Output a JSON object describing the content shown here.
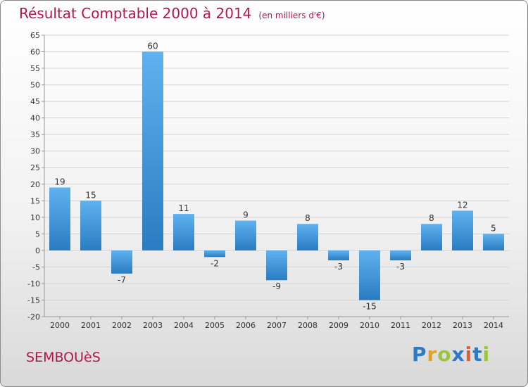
{
  "title": "Résultat Comptable 2000 à 2014",
  "unit": "(en milliers d'€)",
  "commune": "SEMBOUèS",
  "logo": {
    "letters": [
      {
        "ch": "P",
        "color": "#2e7bc4"
      },
      {
        "ch": "r",
        "color": "#e8a21a"
      },
      {
        "ch": "o",
        "color": "#9bc53d"
      },
      {
        "ch": "x",
        "color": "#2e7bc4"
      },
      {
        "ch": "i",
        "color": "#e85d2a"
      },
      {
        "ch": "t",
        "color": "#2e7bc4"
      },
      {
        "ch": "i",
        "color": "#9bc53d"
      }
    ]
  },
  "chart_data": {
    "type": "bar",
    "categories": [
      "2000",
      "2001",
      "2002",
      "2003",
      "2004",
      "2005",
      "2006",
      "2007",
      "2008",
      "2009",
      "2010",
      "2011",
      "2012",
      "2013",
      "2014"
    ],
    "values": [
      19,
      15,
      -7,
      60,
      11,
      -2,
      9,
      -9,
      8,
      -3,
      -15,
      -3,
      8,
      12,
      5
    ],
    "ylim": [
      -20,
      65
    ],
    "yticks": [
      -20,
      -15,
      -10,
      -5,
      0,
      5,
      10,
      15,
      20,
      25,
      30,
      35,
      40,
      45,
      50,
      55,
      60,
      65
    ],
    "grid": true,
    "bar_color": "#3a8fd6"
  }
}
